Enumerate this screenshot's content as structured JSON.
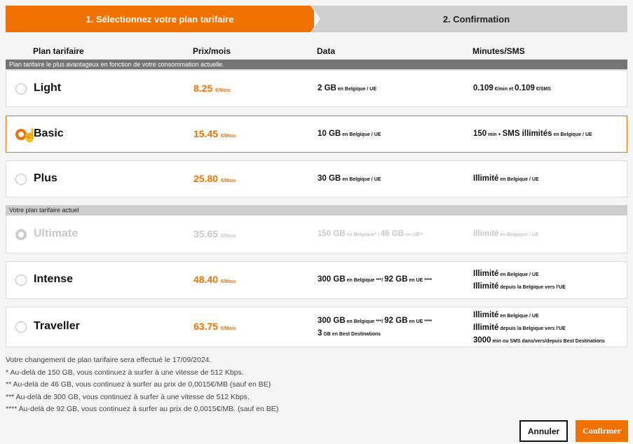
{
  "steps": [
    {
      "label": "1. Sélectionnez votre plan tarifaire",
      "active": true
    },
    {
      "label": "2. Confirmation",
      "active": false
    }
  ],
  "headers": [
    "Plan tarifaire",
    "Prix/mois",
    "Data",
    "Minutes/SMS"
  ],
  "bands": {
    "recommended": "Plan tarifaire le plus avantageux en fonction de votre consommation actuelle.",
    "current": "Votre plan tarifaire actuel"
  },
  "unit": "€/Mois",
  "plans": [
    {
      "name": "Light",
      "price": "8.25",
      "state": "normal",
      "data": [
        [
          [
            "2 GB",
            0
          ],
          [
            " en Belgique / UE",
            1
          ]
        ]
      ],
      "mins": [
        [
          [
            "0.109",
            0
          ],
          [
            " €/min et ",
            1
          ],
          [
            "0.109",
            0
          ],
          [
            " €/SMS",
            1
          ]
        ]
      ]
    },
    {
      "name": "Basic",
      "price": "15.45",
      "state": "selected",
      "data": [
        [
          [
            "10 GB",
            0
          ],
          [
            " en Belgique / UE",
            1
          ]
        ]
      ],
      "mins": [
        [
          [
            "150",
            0
          ],
          [
            " min + ",
            1
          ],
          [
            "SMS illimités",
            0
          ],
          [
            " en Belgique / UE",
            1
          ]
        ]
      ]
    },
    {
      "name": "Plus",
      "price": "25.80",
      "state": "normal",
      "data": [
        [
          [
            "30 GB",
            0
          ],
          [
            " en Belgique / UE",
            1
          ]
        ]
      ],
      "mins": [
        [
          [
            "Illimité",
            0
          ],
          [
            " en Belgique / UE",
            1
          ]
        ]
      ]
    },
    {
      "name": "Ultimate",
      "price": "35.65",
      "state": "current",
      "data": [
        [
          [
            "150 GB",
            0
          ],
          [
            " en Belgique* / ",
            1
          ],
          [
            "46 GB",
            0
          ],
          [
            " en UE**",
            1
          ]
        ]
      ],
      "mins": [
        [
          [
            "Illimité",
            0
          ],
          [
            " en Belgique / UE",
            1
          ]
        ]
      ]
    },
    {
      "name": "Intense",
      "price": "48.40",
      "state": "normal",
      "data": [
        [
          [
            "300 GB",
            0
          ],
          [
            " en Belgique ***/ ",
            1
          ],
          [
            "92 GB",
            0
          ],
          [
            " en UE ****",
            1
          ]
        ]
      ],
      "mins": [
        [
          [
            "Illimité",
            0
          ],
          [
            " en Belgique / UE",
            1
          ]
        ],
        [
          [
            "Illimité",
            0
          ],
          [
            " depuis la Belgique vers l'UE",
            1
          ]
        ]
      ]
    },
    {
      "name": "Traveller",
      "price": "63.75",
      "state": "normal",
      "data": [
        [
          [
            "300 GB",
            0
          ],
          [
            " en Belgique ***/ ",
            1
          ],
          [
            "92 GB",
            0
          ],
          [
            " en UE ****",
            1
          ]
        ],
        [
          [
            "3",
            0
          ],
          [
            " GB en Best Destinations",
            1
          ]
        ]
      ],
      "mins": [
        [
          [
            "Illimité",
            0
          ],
          [
            " en Belgique / UE",
            1
          ]
        ],
        [
          [
            "Illimité",
            0
          ],
          [
            " depuis la Belgique vers l'UE",
            1
          ]
        ],
        [
          [
            "3000",
            0
          ],
          [
            " min ou SMS dans/vers/depuis Best Destinations",
            1
          ]
        ]
      ]
    }
  ],
  "notes": [
    "Votre changement de plan tarifaire sera effectué le 17/09/2024.",
    "* Au-delà de 150 GB, vous continuez à surfer à une vitesse de 512 Kbps.",
    "** Au-delà de 46 GB, vous continuez à surfer au prix de 0,0015€/MB (sauf en BE)",
    "*** Au-delà de 300 GB, vous continuez à surfer à une vitesse de 512 Kbps.",
    "**** Au-delà de 92 GB, vous continuez à surfer au prix de 0,0015€/MB. (sauf en BE)"
  ],
  "buttons": {
    "cancel": "Annuler",
    "confirm": "Confirmer"
  },
  "colors": {
    "accent": "#f07000"
  }
}
